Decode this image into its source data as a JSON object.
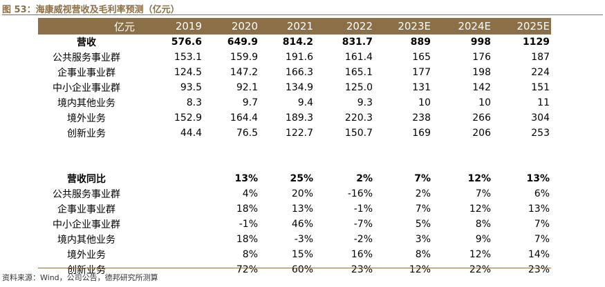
{
  "title": "图 53：海康威视营收及毛利率预测（亿元）",
  "header": [
    "亿元",
    "2019",
    "2020",
    "2021",
    "2022",
    "2023E",
    "2024E",
    "2025E"
  ],
  "revenue_rows": [
    {
      "label": "营收",
      "values": [
        "576.6",
        "649.9",
        "814.2",
        "831.7",
        "889",
        "998",
        "1129"
      ]
    },
    {
      "label": "公共服务事业群",
      "values": [
        "153.1",
        "159.9",
        "191.6",
        "161.4",
        "165",
        "176",
        "187"
      ]
    },
    {
      "label": "企事业事业群",
      "values": [
        "124.5",
        "147.2",
        "166.3",
        "165.1",
        "177",
        "198",
        "224"
      ]
    },
    {
      "label": "中小企业事业群",
      "values": [
        "93.5",
        "92.1",
        "134.9",
        "125.0",
        "131",
        "142",
        "151"
      ]
    },
    {
      "label": "境内其他业务",
      "values": [
        "8.3",
        "9.7",
        "9.4",
        "9.3",
        "10",
        "10",
        "11"
      ]
    },
    {
      "label": "境外业务",
      "values": [
        "152.9",
        "164.4",
        "189.3",
        "220.3",
        "238",
        "266",
        "304"
      ]
    },
    {
      "label": "创新业务",
      "values": [
        "44.4",
        "76.5",
        "122.7",
        "150.7",
        "169",
        "206",
        "253"
      ]
    }
  ],
  "growth_rows": [
    {
      "label": "营收同比",
      "values": [
        "",
        "13%",
        "25%",
        "2%",
        "7%",
        "12%",
        "13%"
      ]
    },
    {
      "label": "公共服务事业群",
      "values": [
        "",
        "4%",
        "20%",
        "-16%",
        "2%",
        "7%",
        "6%"
      ]
    },
    {
      "label": "企事业事业群",
      "values": [
        "",
        "18%",
        "13%",
        "-1%",
        "7%",
        "12%",
        "13%"
      ]
    },
    {
      "label": "中小企业事业群",
      "values": [
        "",
        "-1%",
        "46%",
        "-7%",
        "5%",
        "8%",
        "7%"
      ]
    },
    {
      "label": "境内其他业务",
      "values": [
        "",
        "18%",
        "-3%",
        "-2%",
        "3%",
        "9%",
        "7%"
      ]
    },
    {
      "label": "境外业务",
      "values": [
        "",
        "8%",
        "15%",
        "16%",
        "8%",
        "12%",
        "14%"
      ]
    },
    {
      "label": "创新业务",
      "values": [
        "",
        "72%",
        "60%",
        "23%",
        "12%",
        "22%",
        "23%"
      ]
    }
  ],
  "source": "资料来源：Wind，公司公告，德邦研究所测算"
}
